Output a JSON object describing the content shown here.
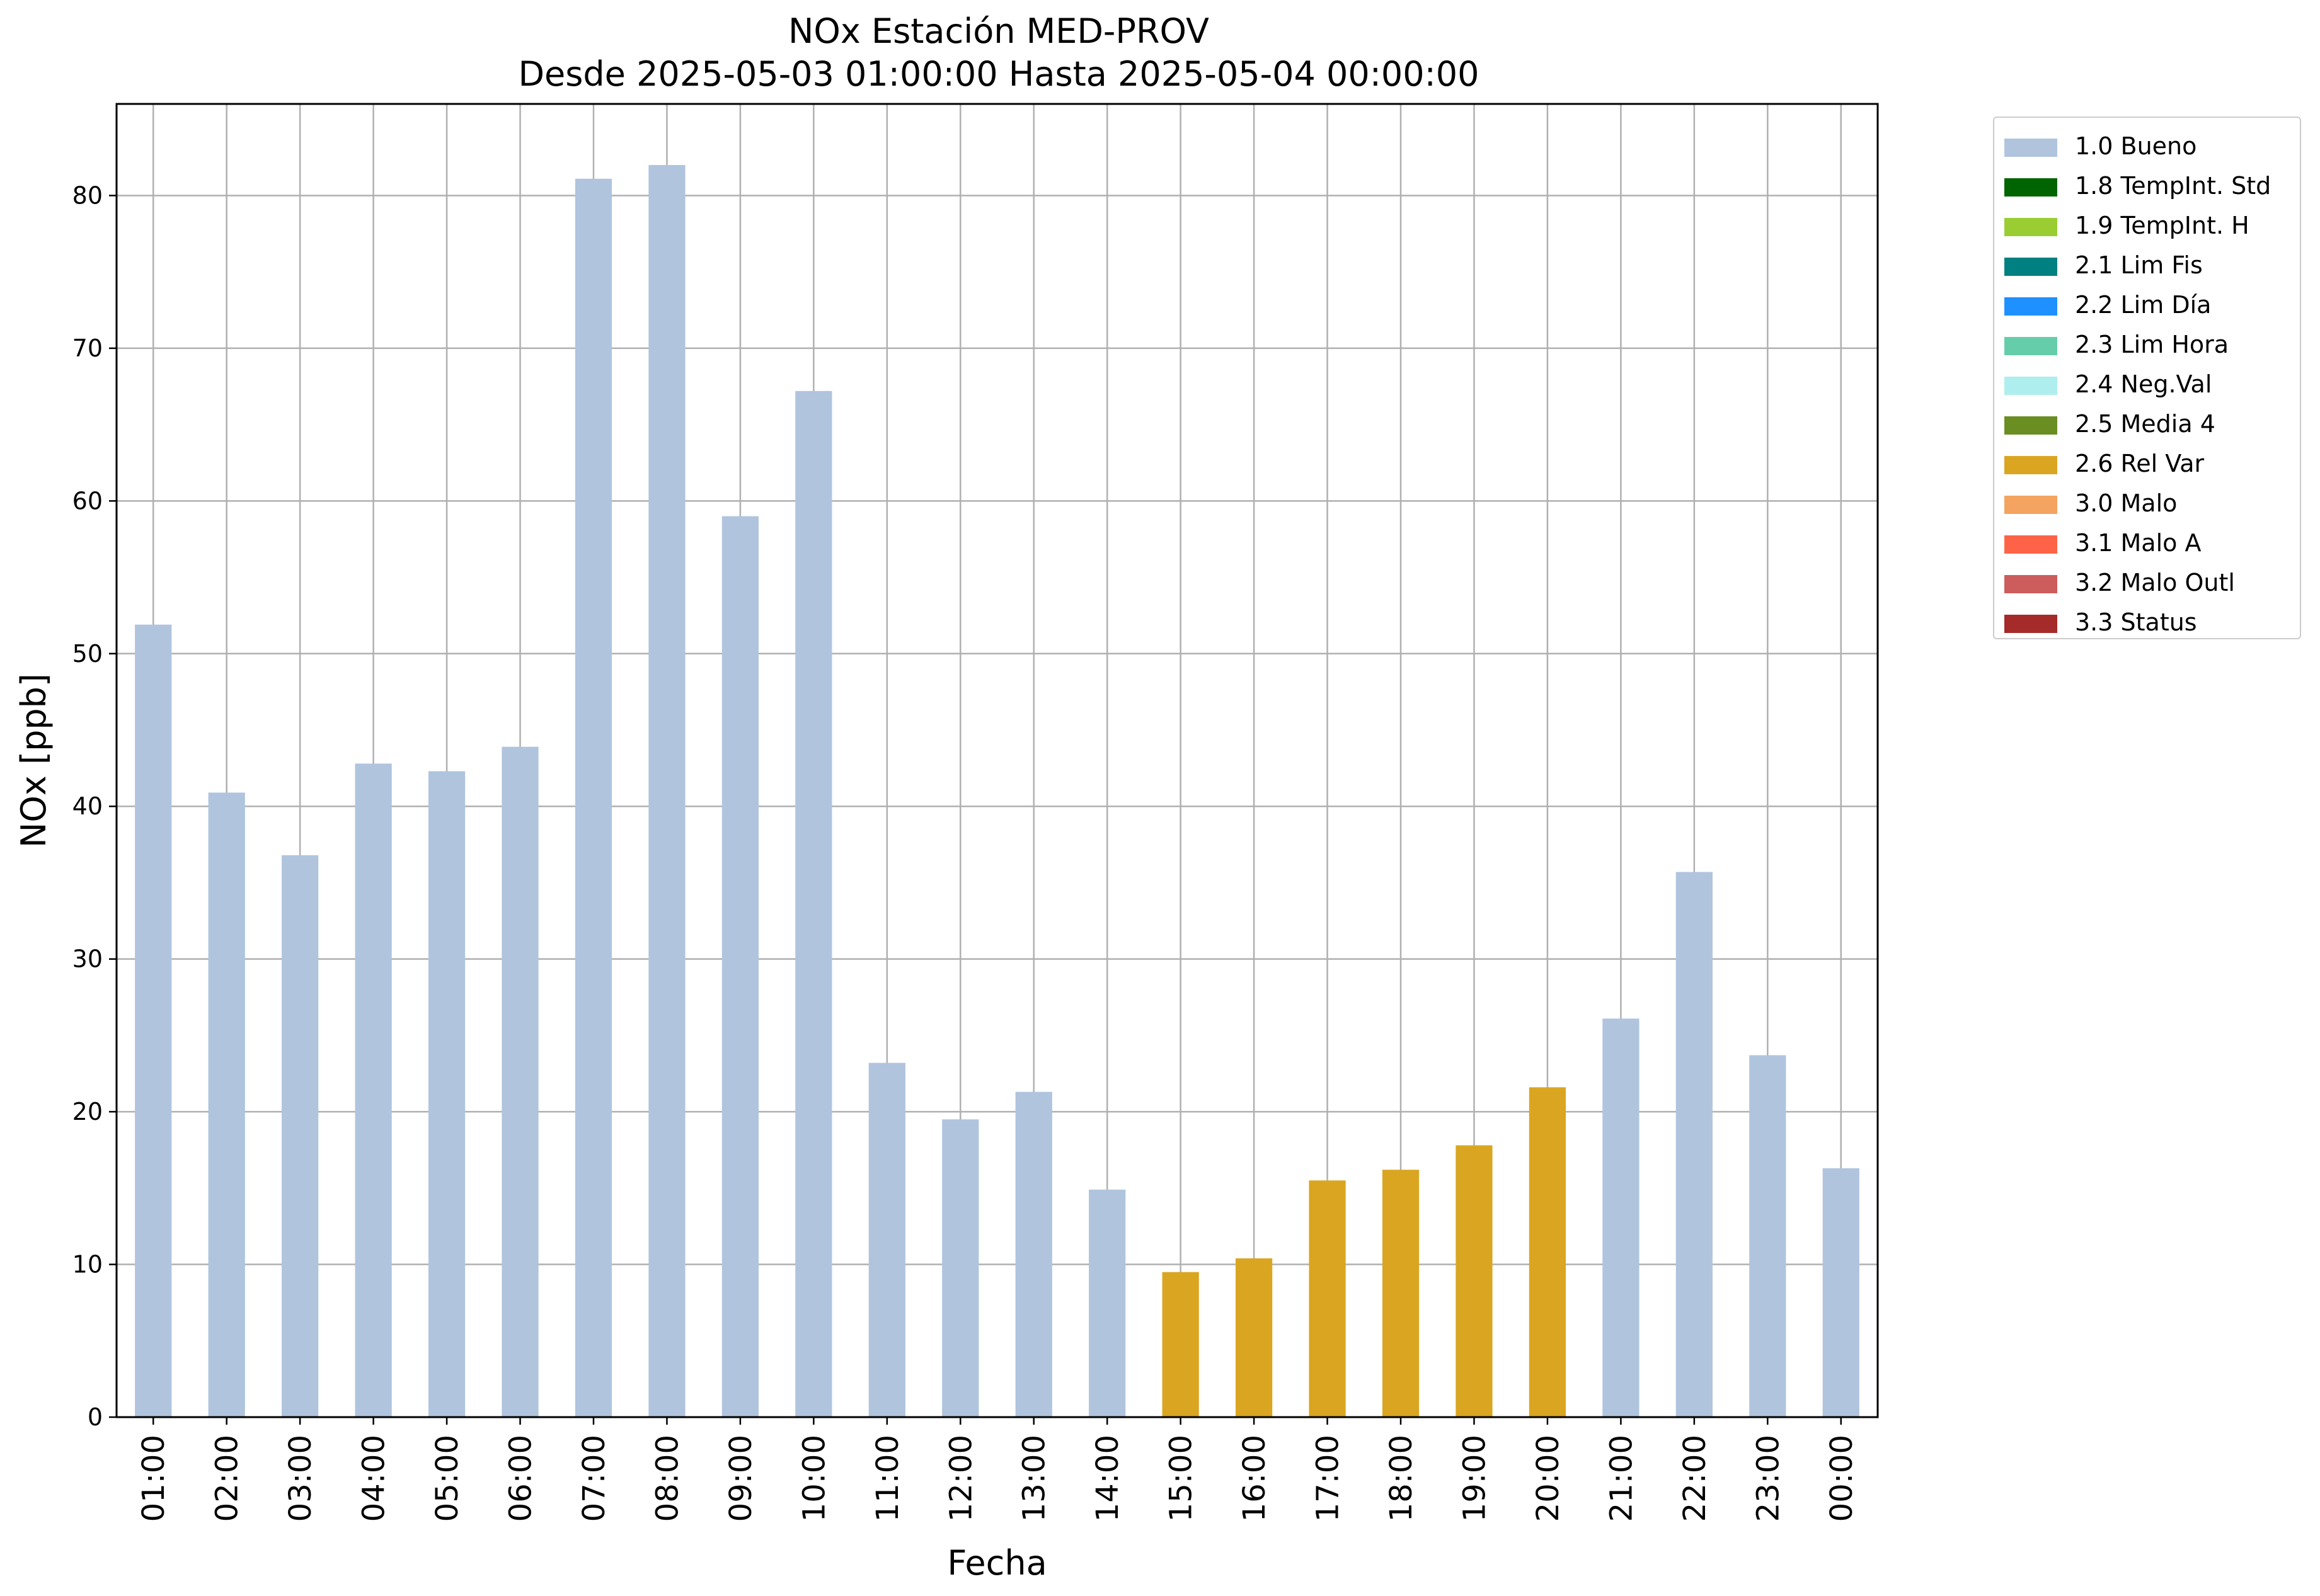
{
  "chart_data": {
    "type": "bar",
    "title": "NOx Estación MED-PROV",
    "subtitle": "Desde 2025-05-03 01:00:00 Hasta 2025-05-04 00:00:00",
    "xlabel": "Fecha",
    "ylabel": "NOx [ppb]",
    "ylim": [
      0,
      86
    ],
    "yticks": [
      0,
      10,
      20,
      30,
      40,
      50,
      60,
      70,
      80
    ],
    "grid": true,
    "legend_position": "outside-top-right",
    "categories": [
      "01:00",
      "02:00",
      "03:00",
      "04:00",
      "05:00",
      "06:00",
      "07:00",
      "08:00",
      "09:00",
      "10:00",
      "11:00",
      "12:00",
      "13:00",
      "14:00",
      "15:00",
      "16:00",
      "17:00",
      "18:00",
      "19:00",
      "20:00",
      "21:00",
      "22:00",
      "23:00",
      "00:00"
    ],
    "values": [
      51.9,
      40.9,
      36.8,
      42.8,
      42.3,
      43.9,
      81.1,
      82.0,
      59.0,
      67.2,
      23.2,
      19.5,
      21.3,
      14.9,
      9.5,
      10.4,
      15.5,
      16.2,
      17.8,
      21.6,
      26.1,
      35.7,
      23.7,
      16.3
    ],
    "quality_flag": [
      "1.0 Bueno",
      "1.0 Bueno",
      "1.0 Bueno",
      "1.0 Bueno",
      "1.0 Bueno",
      "1.0 Bueno",
      "1.0 Bueno",
      "1.0 Bueno",
      "1.0 Bueno",
      "1.0 Bueno",
      "1.0 Bueno",
      "1.0 Bueno",
      "1.0 Bueno",
      "1.0 Bueno",
      "2.6 Rel Var",
      "2.6 Rel Var",
      "2.6 Rel Var",
      "2.6 Rel Var",
      "2.6 Rel Var",
      "2.6 Rel Var",
      "1.0 Bueno",
      "1.0 Bueno",
      "1.0 Bueno",
      "1.0 Bueno"
    ],
    "legend": [
      {
        "label": "1.0 Bueno",
        "color": "#b0c4de"
      },
      {
        "label": "1.8 TempInt. Std",
        "color": "#006400"
      },
      {
        "label": "1.9 TempInt. H",
        "color": "#9acd32"
      },
      {
        "label": "2.1 Lim Fis",
        "color": "#008080"
      },
      {
        "label": "2.2 Lim Día",
        "color": "#1e90ff"
      },
      {
        "label": "2.3 Lim Hora",
        "color": "#66cdaa"
      },
      {
        "label": "2.4 Neg.Val",
        "color": "#afeeee"
      },
      {
        "label": "2.5 Media 4",
        "color": "#6b8e23"
      },
      {
        "label": "2.6 Rel Var",
        "color": "#daa520"
      },
      {
        "label": "3.0 Malo",
        "color": "#f4a460"
      },
      {
        "label": "3.1 Malo A",
        "color": "#ff6347"
      },
      {
        "label": "3.2 Malo Outl",
        "color": "#cd5c5c"
      },
      {
        "label": "3.3 Status",
        "color": "#a52a2a"
      }
    ]
  }
}
